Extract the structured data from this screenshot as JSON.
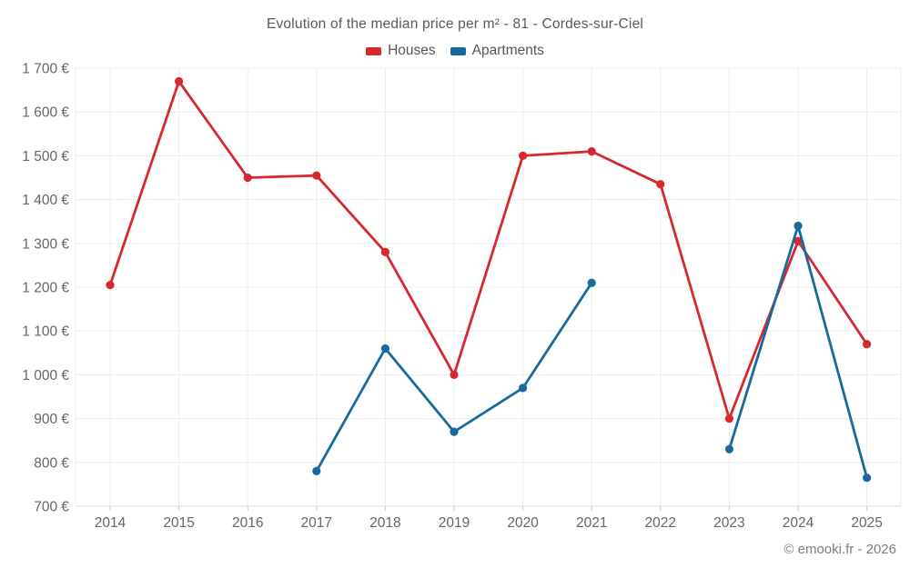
{
  "watermark": "© emooki.fr - 2026",
  "chart_data": {
    "type": "line",
    "title": "Evolution of the median price per m² - 81 - Cordes-sur-Ciel",
    "x_labels": [
      "2014",
      "2015",
      "2016",
      "2017",
      "2018",
      "2019",
      "2020",
      "2021",
      "2022",
      "2023",
      "2024",
      "2025"
    ],
    "series": [
      {
        "name": "Houses",
        "color": "#d7282f",
        "values": [
          1205,
          1670,
          1450,
          1455,
          1280,
          1000,
          1500,
          1510,
          1435,
          900,
          1305,
          1070
        ]
      },
      {
        "name": "Apartments",
        "color": "#17699e",
        "values": [
          null,
          null,
          null,
          780,
          1060,
          870,
          970,
          1210,
          null,
          830,
          1340,
          765
        ]
      }
    ],
    "ylim": [
      700,
      1700
    ],
    "ylabel_suffix": "€",
    "grid": true,
    "legend_position": "top",
    "y_ticks": [
      {
        "value": 1700,
        "label": "1 700 €"
      },
      {
        "value": 1600,
        "label": "1 600 €"
      },
      {
        "value": 1500,
        "label": "1 500 €"
      },
      {
        "value": 1400,
        "label": "1 400 €"
      },
      {
        "value": 1300,
        "label": "1 300 €"
      },
      {
        "value": 1200,
        "label": "1 200 €"
      },
      {
        "value": 1100,
        "label": "1 100 €"
      },
      {
        "value": 1000,
        "label": "1 000 €"
      },
      {
        "value": 900,
        "label": "900 €"
      },
      {
        "value": 800,
        "label": "800 €"
      },
      {
        "value": 700,
        "label": "700 €"
      }
    ]
  }
}
